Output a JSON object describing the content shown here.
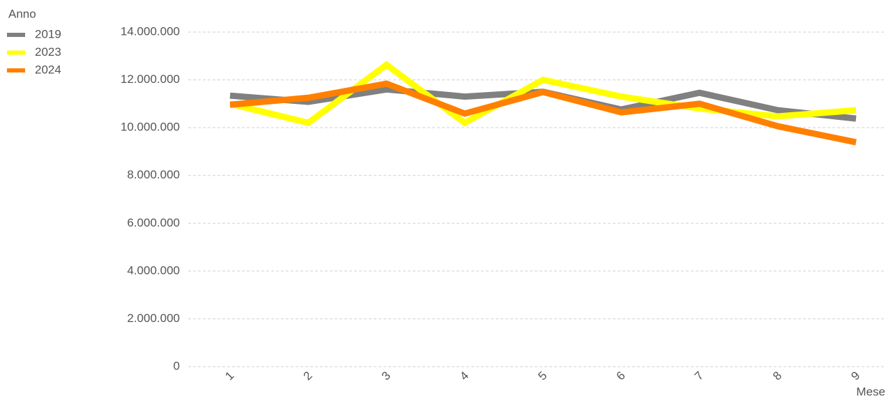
{
  "chart_data": {
    "type": "line",
    "legend_title": "Anno",
    "x_label": "Mese",
    "categories": [
      "1",
      "2",
      "3",
      "4",
      "5",
      "6",
      "7",
      "8",
      "9"
    ],
    "series": [
      {
        "name": "2019",
        "color": "#808080",
        "values": [
          11340000,
          11080000,
          11600000,
          11300000,
          11500000,
          10760000,
          11460000,
          10730000,
          10380000
        ]
      },
      {
        "name": "2023",
        "color": "#ffff00",
        "values": [
          11000000,
          10200000,
          12630000,
          10200000,
          12000000,
          11300000,
          10800000,
          10470000,
          10730000
        ]
      },
      {
        "name": "2024",
        "color": "#ff8000",
        "values": [
          10960000,
          11250000,
          11840000,
          10590000,
          11490000,
          10640000,
          11000000,
          10060000,
          9390000
        ]
      }
    ],
    "ylim": [
      0,
      14000000
    ],
    "yticks": [
      0,
      {
        "value": 2000000,
        "label": "2.000.000"
      },
      {
        "value": 4000000,
        "label": "4.000.000"
      },
      {
        "value": 6000000,
        "label": "6.000.000"
      },
      {
        "value": 8000000,
        "label": "8.000.000"
      },
      {
        "value": 10000000,
        "label": "10.000.000"
      },
      {
        "value": 12000000,
        "label": "12.000.000"
      },
      {
        "value": 14000000,
        "label": "14.000.000"
      }
    ],
    "grid": true,
    "legend_position": "top-left"
  }
}
